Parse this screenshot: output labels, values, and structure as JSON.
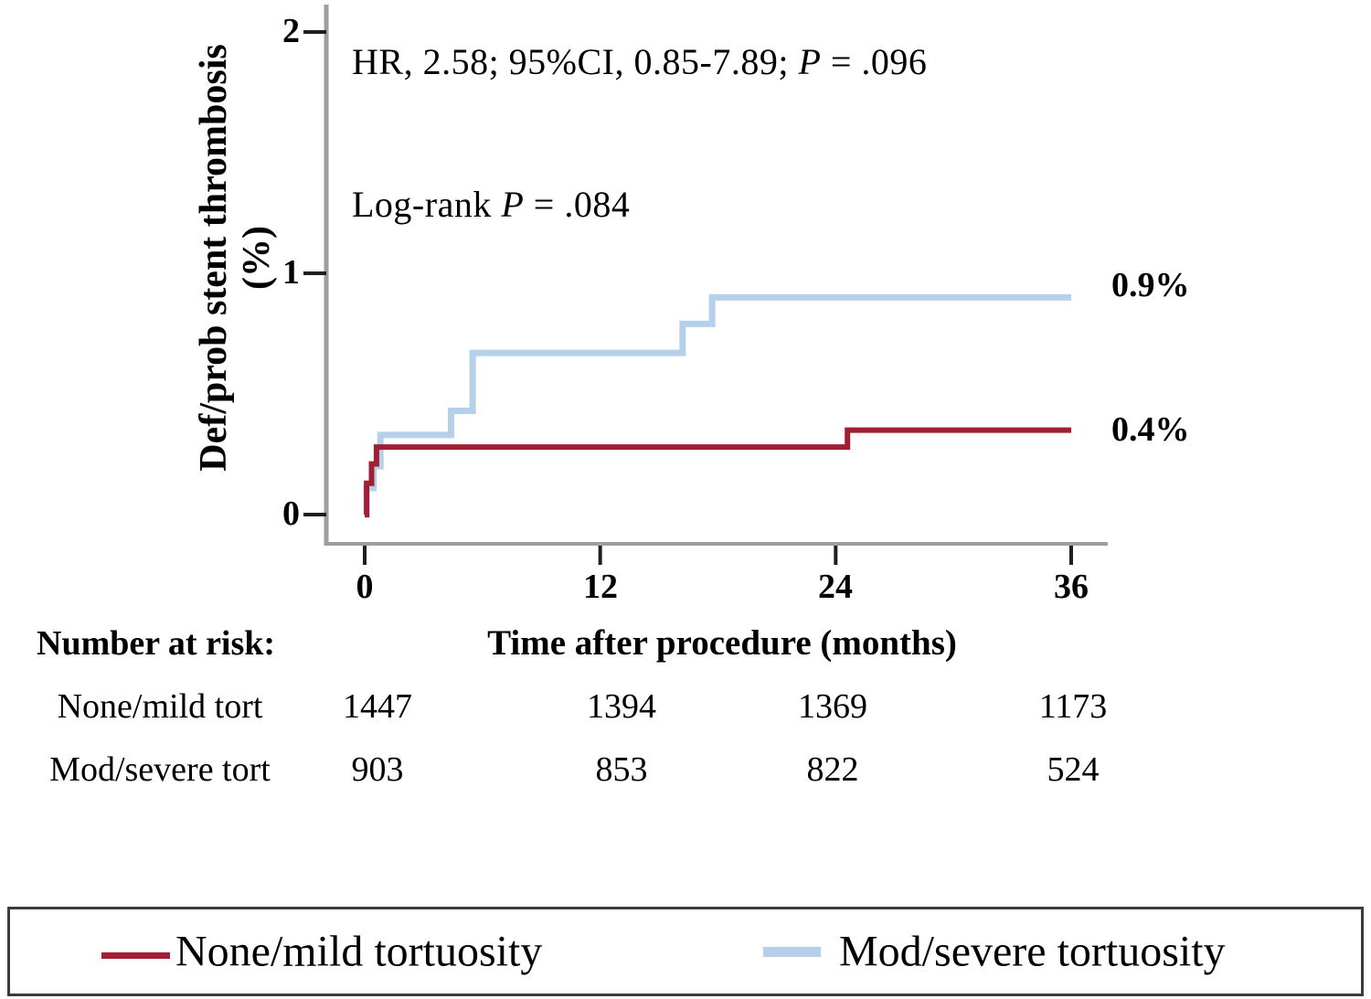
{
  "chart_data": {
    "type": "line",
    "subtype": "kaplan-meier-cumulative-incidence-steps",
    "title": "",
    "xlabel": "Time after procedure (months)",
    "ylabel": "Def/prob stent thrombosis",
    "ylabel_unit": "(%)",
    "xlim": [
      0,
      36
    ],
    "ylim": [
      0,
      2
    ],
    "grid": false,
    "legend_position": "bottom-box",
    "x_ticks": [
      {
        "label": "0",
        "value": 0
      },
      {
        "label": "12",
        "value": 12
      },
      {
        "label": "24",
        "value": 24
      },
      {
        "label": "36",
        "value": 36
      }
    ],
    "y_ticks": [
      {
        "label": "0",
        "value": 0
      },
      {
        "label": "1",
        "value": 1
      },
      {
        "label": "2",
        "value": 2
      }
    ],
    "annotation_hr": {
      "prefix": "HR, 2.58; 95%CI, 0.85-7.89; ",
      "p_symbol": "P",
      "suffix": " = .096"
    },
    "annotation_logrank": {
      "prefix": "Log-rank ",
      "p_symbol": "P",
      "suffix": " = .084"
    },
    "series": [
      {
        "name": "Mod/severe tortuosity",
        "color": "#b4d0ea",
        "end_label": "0.9%",
        "steps_t_pct": [
          [
            0,
            0
          ],
          [
            0.1,
            0.11
          ],
          [
            0.45,
            0.2
          ],
          [
            0.8,
            0.33
          ],
          [
            4.4,
            0.43
          ],
          [
            5.5,
            0.67
          ],
          [
            16.2,
            0.79
          ],
          [
            17.7,
            0.9
          ],
          [
            36,
            0.9
          ]
        ]
      },
      {
        "name": "None/mild tortuosity",
        "color": "#a01f33",
        "end_label": "0.4%",
        "steps_t_pct": [
          [
            0,
            0
          ],
          [
            0.1,
            0.13
          ],
          [
            0.35,
            0.21
          ],
          [
            0.6,
            0.28
          ],
          [
            24.6,
            0.35
          ],
          [
            36,
            0.35
          ]
        ]
      }
    ]
  },
  "risk_table": {
    "title": "Number at risk:",
    "rows": [
      {
        "label": "None/mild tort",
        "values": [
          "1447",
          "1394",
          "1369",
          "1173"
        ]
      },
      {
        "label": "Mod/severe tort",
        "values": [
          "903",
          "853",
          "822",
          "524"
        ]
      }
    ]
  },
  "legend": {
    "items": [
      {
        "label": "None/mild tortuosity",
        "color": "#a01f33"
      },
      {
        "label": "Mod/severe tortuosity",
        "color": "#b4d0ea"
      }
    ]
  },
  "colors": {
    "axis_line": "#9e9e9e",
    "tick_mark": "#1f1f1f",
    "text": "#000000",
    "legend_border": "#3b3b3b"
  }
}
